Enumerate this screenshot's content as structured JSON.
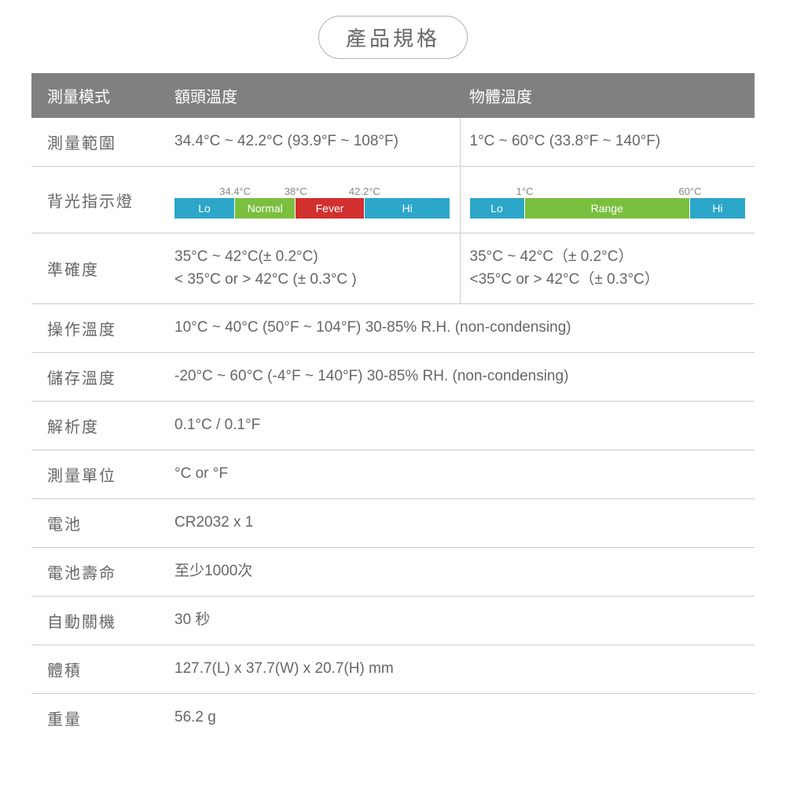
{
  "title": "產品規格",
  "colors": {
    "header_bg": "#808080",
    "header_text": "#ffffff",
    "text": "#666666",
    "border": "#cccccc",
    "blue": "#2ca6c9",
    "green": "#7bbf3f",
    "red": "#d22f2f"
  },
  "header": {
    "mode": "測量模式",
    "forehead": "額頭溫度",
    "object": "物體溫度"
  },
  "rows": {
    "range": {
      "label": "測量範圍",
      "forehead": "34.4°C ~ 42.2°C (93.9°F ~ 108°F)",
      "object": "1°C ~ 60°C  (33.8°F ~ 140°F)"
    },
    "backlight": {
      "label": "背光指示燈",
      "forehead_bar": {
        "tick_labels": [
          "34.4°C",
          "38°C",
          "42.2°C"
        ],
        "tick_positions_pct": [
          22,
          44,
          69
        ],
        "segments": [
          {
            "label": "Lo",
            "color": "#2ca6c9",
            "width_pct": 22
          },
          {
            "label": "Normal",
            "color": "#7bbf3f",
            "width_pct": 22
          },
          {
            "label": "Fever",
            "color": "#d22f2f",
            "width_pct": 25
          },
          {
            "label": "Hi",
            "color": "#2ca6c9",
            "width_pct": 31
          }
        ]
      },
      "object_bar": {
        "tick_labels": [
          "1°C",
          "60°C"
        ],
        "tick_positions_pct": [
          20,
          80
        ],
        "segments": [
          {
            "label": "Lo",
            "color": "#2ca6c9",
            "width_pct": 20
          },
          {
            "label": "Range",
            "color": "#7bbf3f",
            "width_pct": 60
          },
          {
            "label": "Hi",
            "color": "#2ca6c9",
            "width_pct": 20
          }
        ]
      }
    },
    "accuracy": {
      "label": "準確度",
      "forehead_line1": "35°C ~ 42°C(± 0.2°C)",
      "forehead_line2": "< 35°C or > 42°C (± 0.3°C )",
      "object_line1": "35°C  ~ 42°C（± 0.2°C）",
      "object_line2": "<35°C  or > 42°C（± 0.3°C）"
    },
    "operating": {
      "label": "操作溫度",
      "value": "10°C ~ 40°C (50°F ~ 104°F) 30-85% R.H. (non-condensing)"
    },
    "storage": {
      "label": "儲存溫度",
      "value": "-20°C ~ 60°C (-4°F ~ 140°F) 30-85% RH. (non-condensing)"
    },
    "resolution": {
      "label": "解析度",
      "value": "0.1°C / 0.1°F"
    },
    "unit": {
      "label": "測量單位",
      "value": "°C or °F"
    },
    "battery": {
      "label": "電池",
      "value": "CR2032 x 1"
    },
    "battlife": {
      "label": "電池壽命",
      "value": "至少1000次"
    },
    "autooff": {
      "label": "自動關機",
      "value": "30 秒"
    },
    "size": {
      "label": "體積",
      "value": "127.7(L) x 37.7(W) x 20.7(H) mm"
    },
    "weight": {
      "label": "重量",
      "value": "56.2 g"
    }
  }
}
